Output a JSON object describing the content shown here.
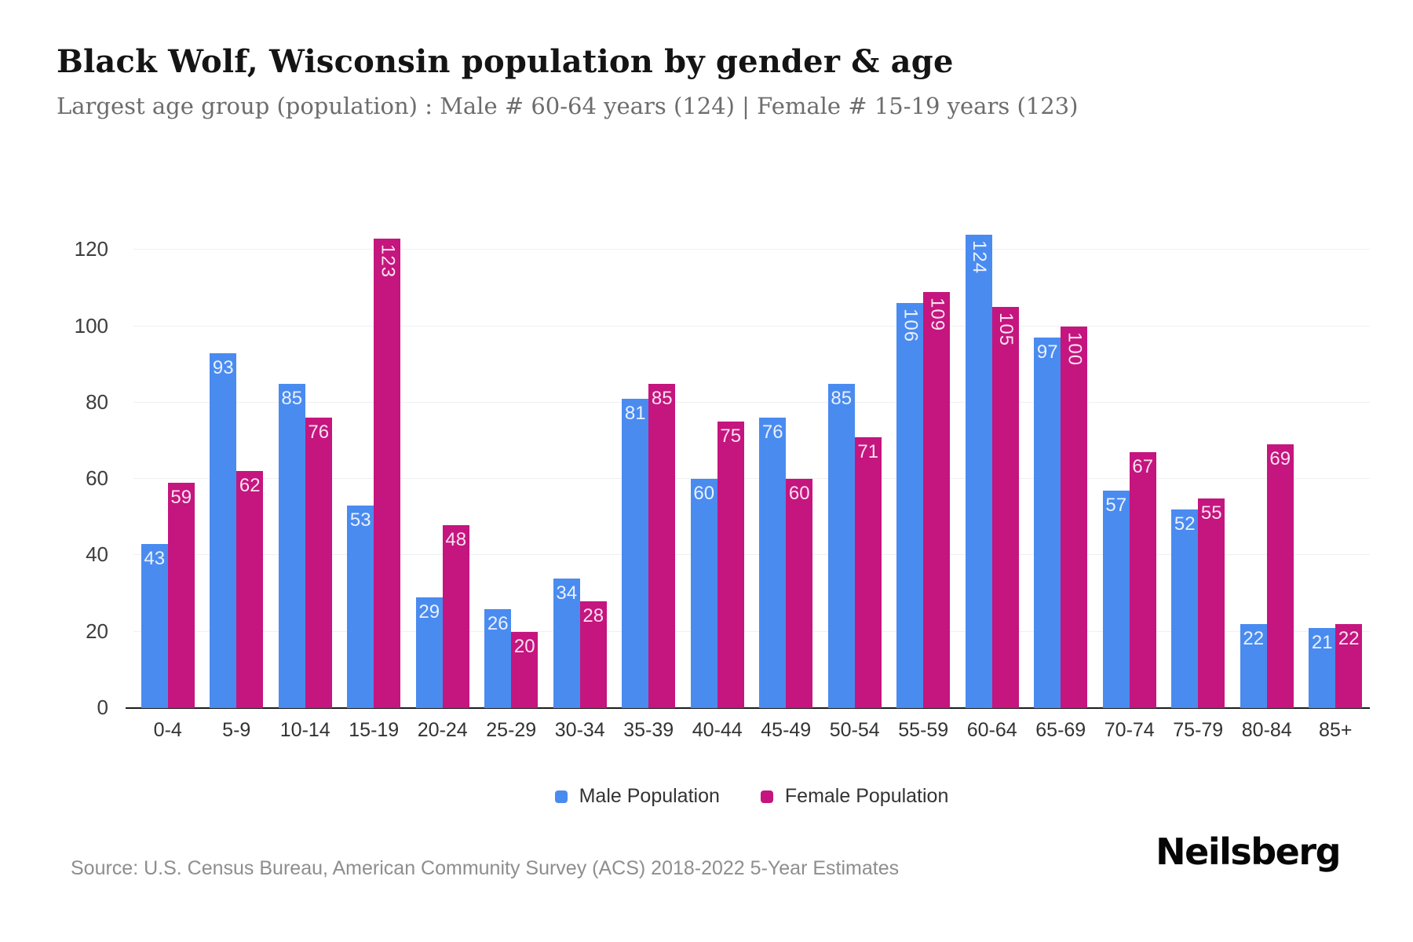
{
  "header": {
    "title": "Black Wolf, Wisconsin population by gender & age",
    "subtitle": "Largest age group (population) : Male # 60-64 years (124) | Female # 15-19 years (123)"
  },
  "chart_data": {
    "type": "bar",
    "title": "Black Wolf, Wisconsin population by gender & age",
    "categories": [
      "0-4",
      "5-9",
      "10-14",
      "15-19",
      "20-24",
      "25-29",
      "30-34",
      "35-39",
      "40-44",
      "45-49",
      "50-54",
      "55-59",
      "60-64",
      "65-69",
      "70-74",
      "75-79",
      "80-84",
      "85+"
    ],
    "series": [
      {
        "name": "Male Population",
        "color": "#4A8BF0",
        "values": [
          43,
          93,
          85,
          53,
          29,
          26,
          34,
          81,
          60,
          76,
          85,
          106,
          124,
          97,
          57,
          52,
          22,
          21
        ]
      },
      {
        "name": "Female Population",
        "color": "#C5157E",
        "values": [
          59,
          62,
          76,
          123,
          48,
          20,
          28,
          85,
          75,
          60,
          71,
          109,
          105,
          100,
          67,
          55,
          69,
          22
        ]
      }
    ],
    "xlabel": "",
    "ylabel": "",
    "ylim": [
      0,
      132
    ],
    "yticks": [
      0,
      20,
      40,
      60,
      80,
      100,
      120
    ],
    "grid": "horizontal-only",
    "legend_position": "bottom",
    "bar_value_labels": "inside top, white; values >= 100 rotated vertical"
  },
  "legend": {
    "male_label": "Male Population",
    "female_label": "Female Population"
  },
  "colors": {
    "male": "#4A8BF0",
    "female": "#C5157E",
    "gridline": "#f0f0f0",
    "axis_line": "#1c1c1c",
    "title_text": "#141414",
    "subtitle_text": "#6d6d6d",
    "tick_text": "#3d3d3d",
    "source_text": "#8e8e8e"
  },
  "footer": {
    "source": "Source: U.S. Census Bureau, American Community Survey (ACS) 2018-2022 5-Year Estimates",
    "brand": "Neilsberg"
  }
}
